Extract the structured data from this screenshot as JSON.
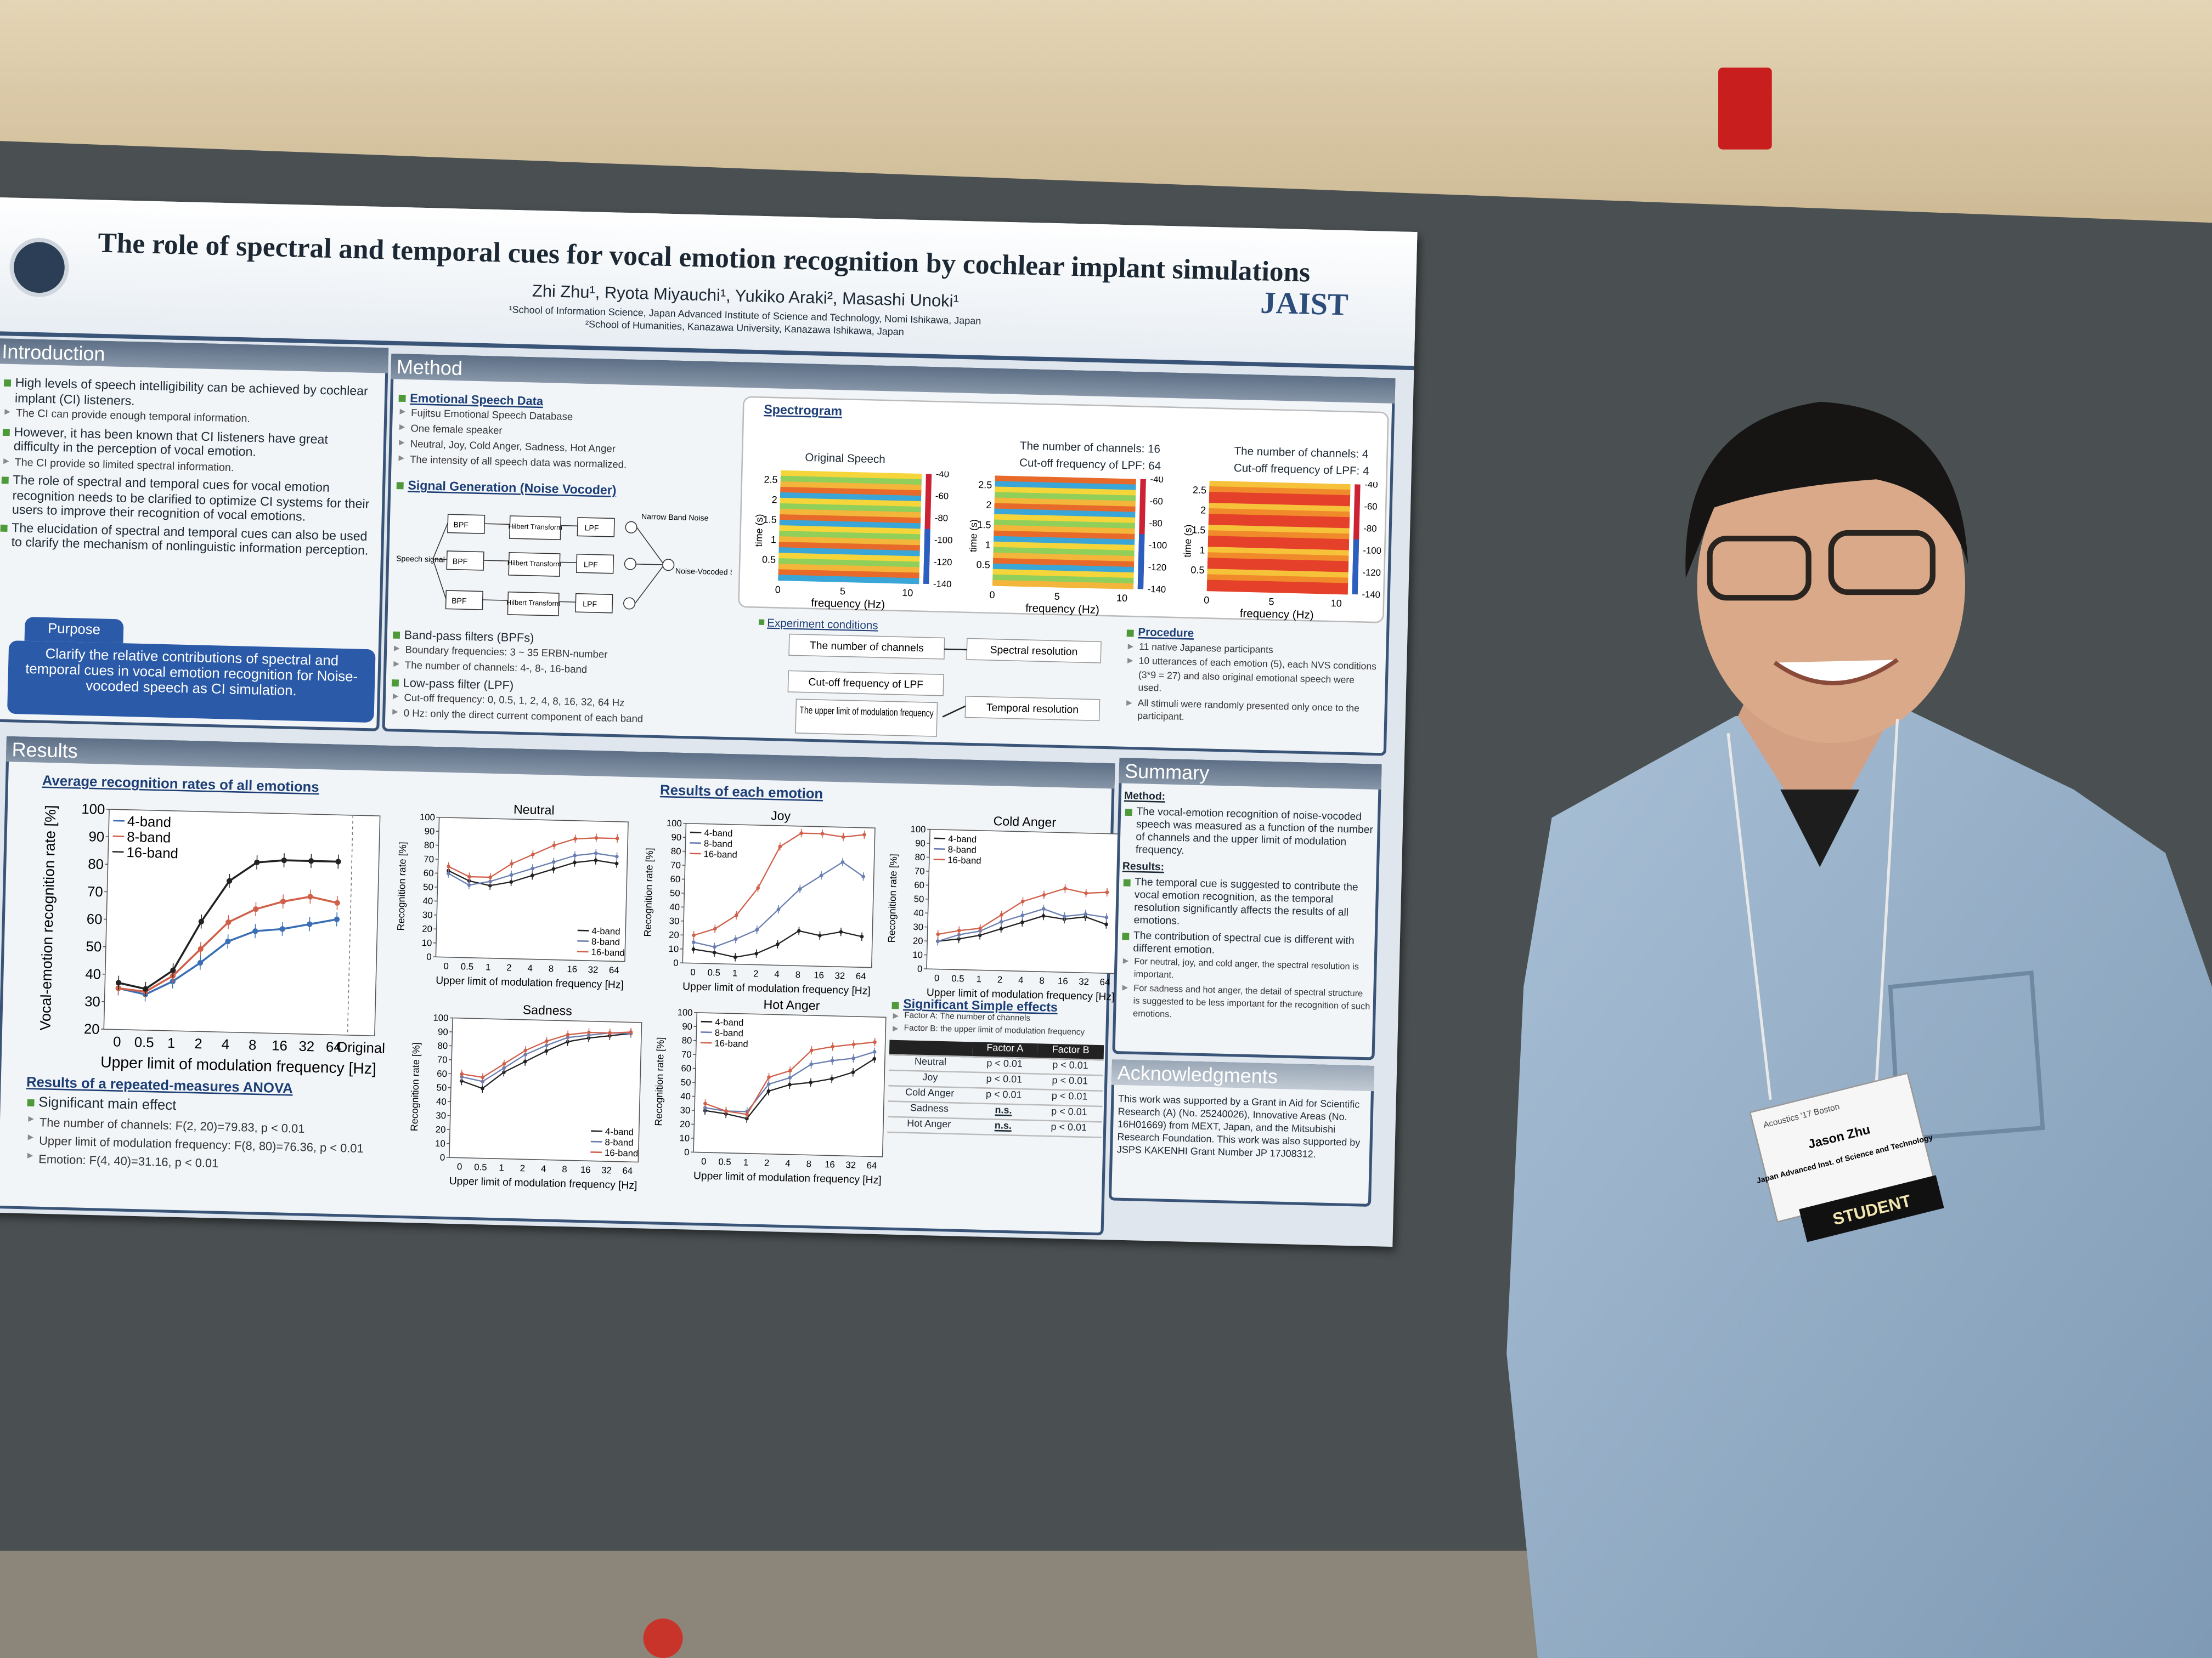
{
  "poster": {
    "title": "The role of spectral and temporal cues for vocal emotion recognition by cochlear implant simulations",
    "authors": "Zhi Zhu¹, Ryota Miyauchi¹, Yukiko Araki², Masashi Unoki¹",
    "affiliations": [
      "¹School of Information Science, Japan Advanced Institute of Science and Technology, Nomi Ishikawa, Japan",
      "²School of Humanities, Kanazawa University, Kanazawa Ishikawa, Japan"
    ],
    "logo": "JAIST",
    "introduction": {
      "heading": "Introduction",
      "items": [
        {
          "text": "High levels of speech intelligibility can be achieved by cochlear implant (CI) listeners.",
          "notes": [
            "The CI can provide enough temporal information."
          ]
        },
        {
          "text": "However, it has been known that CI listeners have great difficulty in the perception of vocal emotion.",
          "notes": [
            "The CI provide so limited spectral information."
          ]
        },
        {
          "text": "The role of spectral and temporal cues for vocal emotion recognition needs to be clarified to optimize CI systems for their users to improve their recognition of vocal emotions.",
          "notes": []
        },
        {
          "text": "The elucidation of spectral and temporal cues can also be used to clarify the mechanism of nonlinguistic information perception.",
          "notes": []
        }
      ],
      "purpose": {
        "heading": "Purpose",
        "text": "Clarify the relative contributions of spectral and temporal cues in vocal emotion recognition for Noise-vocoded speech as CI simulation."
      }
    },
    "method": {
      "heading": "Method",
      "speech": {
        "heading": "Emotional Speech Data",
        "notes": [
          "Fujitsu Emotional Speech Database",
          "One female speaker",
          "Neutral, Joy, Cold Anger, Sadness, Hot Anger",
          "The intensity of all speech data was normalized."
        ]
      },
      "vocoder": {
        "heading": "Signal Generation (Noise Vocoder)",
        "input": "Speech signal",
        "bpf": "BPF",
        "hilbert": "Hilbert Transform",
        "lpf": "LPF",
        "noise": "Narrow Band Noise",
        "output": "Noise-Vocoded Speech"
      },
      "filters": [
        {
          "heading": "Band-pass filters (BPFs)",
          "notes": [
            "Boundary frequencies: 3 ~ 35 ERBN-number",
            "The number of channels: 4-, 8-, 16-band"
          ]
        },
        {
          "heading": "Low-pass filter (LPF)",
          "notes": [
            "Cut-off frequency: 0, 0.5, 1, 2, 4, 8, 16, 32, 64 Hz",
            "0 Hz: only the direct current component of each band"
          ]
        }
      ],
      "spectrogram": {
        "heading": "Spectrogram",
        "panels": [
          {
            "title": "Original Speech"
          },
          {
            "title": "The number of channels: 16",
            "subtitle": "Cut-off frequency of LPF: 64"
          },
          {
            "title": "The number of channels: 4",
            "subtitle": "Cut-off frequency of LPF: 4"
          }
        ],
        "time_label": "time (s)",
        "freq_label": "frequency (Hz)",
        "time_ticks": [
          0.5,
          1,
          1.5,
          2,
          2.5
        ],
        "freq_ticks": [
          0,
          5,
          10
        ],
        "level_ticks": [
          -40,
          -60,
          -80,
          -100,
          -120,
          -140
        ]
      },
      "conditions": {
        "heading": "Experiment conditions",
        "boxes": [
          "The number of channels",
          "Spectral resolution",
          "Cut-off frequency of LPF",
          "The upper limit of modulation frequency",
          "Temporal resolution"
        ]
      },
      "procedure": {
        "heading": "Procedure",
        "notes": [
          "11 native Japanese participants",
          "10 utterances of each emotion (5), each NVS conditions (3*9 = 27) and also original emotional speech were used.",
          "All stimuli were randomly presented only once to the participant."
        ]
      }
    },
    "results": {
      "heading": "Results",
      "average": {
        "type": "line",
        "title": "Average recognition rates of all emotions",
        "ylabel": "Vocal-emotion recognition rate [%]",
        "xlabel": "Upper limit of modulation frequency [Hz]",
        "categories": [
          "0",
          "0.5",
          "1",
          "2",
          "4",
          "8",
          "16",
          "32",
          "64",
          "Original"
        ],
        "ylim": [
          20,
          100
        ],
        "yticks": [
          20,
          30,
          40,
          50,
          60,
          70,
          80,
          90,
          100
        ],
        "legend": "upper left",
        "series": [
          {
            "name": "4-band",
            "color": "#3a6fb5",
            "values": [
              35,
              33,
              38,
              45,
              53,
              57,
              58,
              60,
              62,
              null
            ]
          },
          {
            "name": "8-band",
            "color": "#d0604a",
            "values": [
              35,
              34,
              40,
              50,
              60,
              65,
              68,
              70,
              68,
              null
            ]
          },
          {
            "name": "16-band",
            "color": "#222222",
            "values": [
              37,
              35,
              42,
              60,
              75,
              82,
              83,
              83,
              83,
              null
            ]
          }
        ]
      },
      "each_heading": "Results of each emotion",
      "emotions": [
        {
          "type": "line",
          "title": "Neutral",
          "ylabel": "Recognition rate [%]",
          "xlabel": "Upper limit of modulation frequency [Hz]",
          "categories": [
            "0",
            "0.5",
            "1",
            "2",
            "4",
            "8",
            "16",
            "32",
            "64"
          ],
          "ylim": [
            0,
            100
          ],
          "yticks": [
            0,
            10,
            20,
            30,
            40,
            50,
            60,
            70,
            80,
            90,
            100
          ],
          "legend": "lower right",
          "series": [
            {
              "name": "4-band",
              "color": "#222222",
              "values": [
                62,
                55,
                52,
                55,
                60,
                65,
                70,
                72,
                70
              ]
            },
            {
              "name": "8-band",
              "color": "#6a7fb0",
              "values": [
                60,
                52,
                55,
                60,
                65,
                70,
                75,
                77,
                75
              ]
            },
            {
              "name": "16-band",
              "color": "#d0604a",
              "values": [
                65,
                58,
                58,
                68,
                75,
                82,
                87,
                88,
                88
              ]
            }
          ]
        },
        {
          "type": "line",
          "title": "Joy",
          "ylabel": "Recognition rate [%]",
          "xlabel": "Upper limit of modulation frequency [Hz]",
          "categories": [
            "0",
            "0.5",
            "1",
            "2",
            "4",
            "8",
            "16",
            "32",
            "64"
          ],
          "ylim": [
            0,
            100
          ],
          "yticks": [
            0,
            10,
            20,
            30,
            40,
            50,
            60,
            70,
            80,
            90,
            100
          ],
          "legend": "upper left",
          "series": [
            {
              "name": "4-band",
              "color": "#222222",
              "values": [
                10,
                8,
                5,
                8,
                15,
                25,
                22,
                25,
                22
              ]
            },
            {
              "name": "8-band",
              "color": "#6a7fb0",
              "values": [
                15,
                12,
                18,
                25,
                40,
                55,
                65,
                75,
                65
              ]
            },
            {
              "name": "16-band",
              "color": "#d0604a",
              "values": [
                20,
                25,
                35,
                55,
                85,
                95,
                95,
                93,
                95
              ]
            }
          ]
        },
        {
          "type": "line",
          "title": "Cold Anger",
          "ylabel": "Recognition rate [%]",
          "xlabel": "Upper limit of modulation frequency [Hz]",
          "categories": [
            "0",
            "0.5",
            "1",
            "2",
            "4",
            "8",
            "16",
            "32",
            "64"
          ],
          "ylim": [
            0,
            100
          ],
          "yticks": [
            0,
            10,
            20,
            30,
            40,
            50,
            60,
            70,
            80,
            90,
            100
          ],
          "legend": "upper left",
          "series": [
            {
              "name": "4-band",
              "color": "#222222",
              "values": [
                20,
                22,
                25,
                30,
                35,
                40,
                38,
                40,
                35
              ]
            },
            {
              "name": "8-band",
              "color": "#6a7fb0",
              "values": [
                20,
                25,
                28,
                35,
                40,
                45,
                40,
                42,
                40
              ]
            },
            {
              "name": "16-band",
              "color": "#d0604a",
              "values": [
                25,
                28,
                30,
                40,
                50,
                55,
                60,
                57,
                58
              ]
            }
          ]
        },
        {
          "type": "line",
          "title": "Sadness",
          "ylabel": "Recognition rate [%]",
          "xlabel": "Upper limit of modulation frequency [Hz]",
          "categories": [
            "0",
            "0.5",
            "1",
            "2",
            "4",
            "8",
            "16",
            "32",
            "64"
          ],
          "ylim": [
            0,
            100
          ],
          "yticks": [
            0,
            10,
            20,
            30,
            40,
            50,
            60,
            70,
            80,
            90,
            100
          ],
          "legend": "lower right",
          "series": [
            {
              "name": "4-band",
              "color": "#222222",
              "values": [
                55,
                50,
                62,
                70,
                78,
                85,
                88,
                90,
                92
              ]
            },
            {
              "name": "8-band",
              "color": "#6a7fb0",
              "values": [
                58,
                55,
                65,
                75,
                82,
                88,
                90,
                92,
                92
              ]
            },
            {
              "name": "16-band",
              "color": "#d0604a",
              "values": [
                60,
                58,
                68,
                78,
                85,
                90,
                92,
                92,
                93
              ]
            }
          ]
        },
        {
          "type": "line",
          "title": "Hot Anger",
          "ylabel": "Recognition rate [%]",
          "xlabel": "Upper limit of modulation frequency [Hz]",
          "categories": [
            "0",
            "0.5",
            "1",
            "2",
            "4",
            "8",
            "16",
            "32",
            "64"
          ],
          "ylim": [
            0,
            100
          ],
          "yticks": [
            0,
            10,
            20,
            30,
            40,
            50,
            60,
            70,
            80,
            90,
            100
          ],
          "legend": "upper left",
          "series": [
            {
              "name": "4-band",
              "color": "#222222",
              "values": [
                30,
                28,
                25,
                45,
                50,
                52,
                55,
                60,
                70
              ]
            },
            {
              "name": "8-band",
              "color": "#6a7fb0",
              "values": [
                32,
                30,
                30,
                50,
                55,
                65,
                68,
                70,
                75
              ]
            },
            {
              "name": "16-band",
              "color": "#d0604a",
              "values": [
                35,
                30,
                28,
                55,
                60,
                75,
                78,
                80,
                82
              ]
            }
          ]
        }
      ],
      "anova": {
        "heading": "Results of a repeated-measures ANOVA",
        "main": "Significant main effect",
        "items": [
          "The number of channels: F(2, 20)=79.83, p < 0.01",
          "Upper limit of modulation frequency: F(8, 80)=76.36, p < 0.01",
          "Emotion: F(4, 40)=31.16, p < 0.01"
        ]
      },
      "simple": {
        "heading": "Significant Simple effects",
        "notes": [
          "Factor A: The number of channels",
          "Factor B: the upper limit of modulation frequency"
        ],
        "columns": [
          "Factor A",
          "Factor B"
        ],
        "rows": [
          [
            "Neutral",
            "p < 0.01",
            "p < 0.01"
          ],
          [
            "Joy",
            "p < 0.01",
            "p < 0.01"
          ],
          [
            "Cold Anger",
            "p < 0.01",
            "p < 0.01"
          ],
          [
            "Sadness",
            "n.s.",
            "p < 0.01"
          ],
          [
            "Hot Anger",
            "n.s.",
            "p < 0.01"
          ]
        ]
      }
    },
    "summary": {
      "heading": "Summary",
      "method_label": "Method:",
      "method": "The vocal-emotion recognition of noise-vocoded speech was measured as a function of the number of channels and the upper limit of modulation frequency.",
      "results_label": "Results:",
      "items": [
        {
          "text": "The temporal cue is suggested to contribute the vocal emotion recognition, as the temporal resolution significantly affects the results of all emotions.",
          "notes": []
        },
        {
          "text": "The contribution of spectral cue is different with different emotion.",
          "notes": [
            "For neutral, joy, and cold anger, the spectral resolution is important.",
            "For sadness and hot anger, the detail of spectral structure is suggested to be less important for the recognition of such emotions."
          ]
        }
      ]
    },
    "acknowledgments": {
      "heading": "Acknowledgments",
      "text": "This work was supported by a Grant in Aid for Scientific Research (A) (No. 25240026), Innovative Areas (No. 16H01669) from MEXT, Japan, and the Mitsubishi Research Foundation. This work was also supported by JSPS KAKENHI Grant Number JP 17J08312."
    }
  },
  "badge": {
    "event": "Acoustics '17 Boston",
    "name": "Jason Zhu",
    "affiliation": "Japan Advanced Inst. of Science and Technology",
    "ribbon": "STUDENT"
  }
}
